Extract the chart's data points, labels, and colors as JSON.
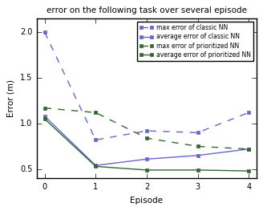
{
  "title": "error on the following task over several episode",
  "xlabel": "Episode",
  "ylabel": "Error (m)",
  "episodes": [
    0,
    1,
    2,
    3,
    4
  ],
  "classic_max": [
    2.0,
    0.82,
    0.92,
    0.9,
    1.12
  ],
  "classic_avg": [
    1.08,
    0.54,
    0.61,
    0.65,
    0.72
  ],
  "prioritized_max": [
    1.17,
    1.12,
    0.84,
    0.75,
    0.72
  ],
  "prioritized_avg": [
    1.05,
    0.53,
    0.49,
    0.49,
    0.48
  ],
  "classic_color": "#6666cc",
  "prioritized_color": "#336633",
  "legend_labels": [
    "max error of classic NN",
    "average error of classic NN",
    "max error of prioritized NN",
    "average error of prioritized NN"
  ],
  "ylim": [
    0.4,
    2.15
  ],
  "xlim": [
    -0.15,
    4.15
  ],
  "yticks": [
    0.5,
    1.0,
    1.5,
    2.0
  ],
  "xticks": [
    0,
    1,
    2,
    3,
    4
  ],
  "bg_color": "#f0f0f0",
  "title_fontsize": 7.5,
  "label_fontsize": 7.5,
  "tick_fontsize": 7,
  "legend_fontsize": 5.5
}
